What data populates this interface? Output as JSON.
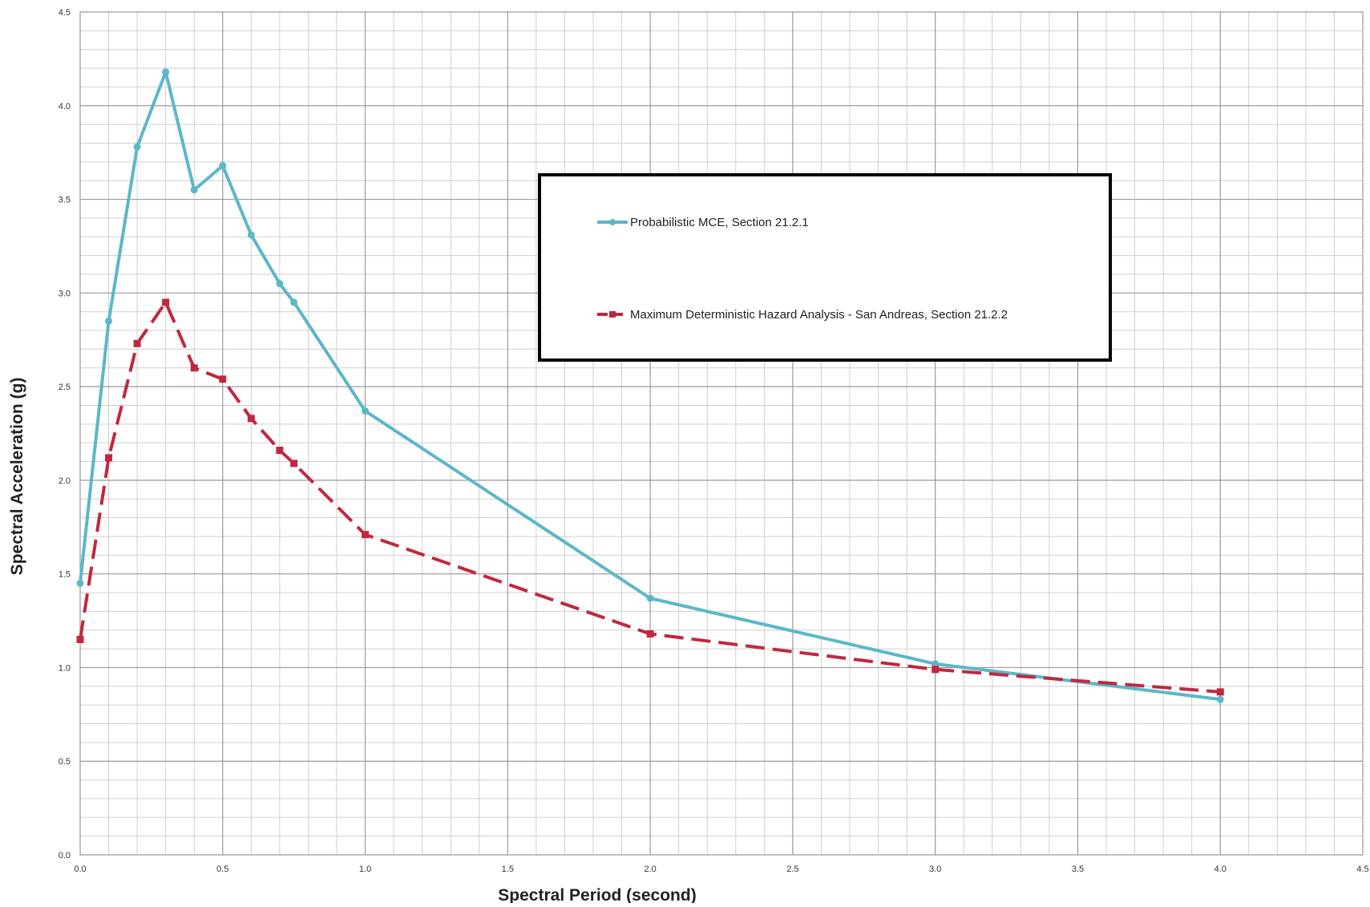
{
  "chart_data": {
    "type": "line",
    "title": "",
    "xlabel": "Spectral Period (second)",
    "ylabel": "Spectral Acceleration (g)",
    "xlim": [
      0,
      4.5
    ],
    "ylim": [
      0,
      4.5
    ],
    "x_ticks": [
      "0.0",
      "0.5",
      "1.0",
      "1.5",
      "2.0",
      "2.5",
      "3.0",
      "3.5",
      "4.0",
      "4.5"
    ],
    "y_ticks": [
      "0.0",
      "0.5",
      "1.0",
      "1.5",
      "2.0",
      "2.5",
      "3.0",
      "3.5",
      "4.0",
      "4.5"
    ],
    "grid": true,
    "legend_position": "top-right",
    "series": [
      {
        "name": "Probabilistic MCE, Section 21.2.1",
        "color": "#5BB7C9",
        "line_style": "solid",
        "marker": "circle",
        "x": [
          0.0,
          0.1,
          0.2,
          0.3,
          0.4,
          0.5,
          0.6,
          0.7,
          0.75,
          1.0,
          2.0,
          3.0,
          4.0
        ],
        "y": [
          1.45,
          2.85,
          3.78,
          4.18,
          3.55,
          3.68,
          3.31,
          3.05,
          2.95,
          2.37,
          1.37,
          1.02,
          0.83
        ]
      },
      {
        "name": "Maximum Deterministic Hazard Analysis -  San Andreas, Section 21.2.2",
        "color": "#C0283E",
        "line_style": "dashed",
        "marker": "square",
        "x": [
          0.0,
          0.1,
          0.2,
          0.3,
          0.4,
          0.5,
          0.6,
          0.7,
          0.75,
          1.0,
          2.0,
          3.0,
          4.0
        ],
        "y": [
          1.15,
          2.12,
          2.73,
          2.95,
          2.6,
          2.54,
          2.33,
          2.16,
          2.09,
          1.71,
          1.18,
          0.99,
          0.87
        ]
      }
    ]
  }
}
